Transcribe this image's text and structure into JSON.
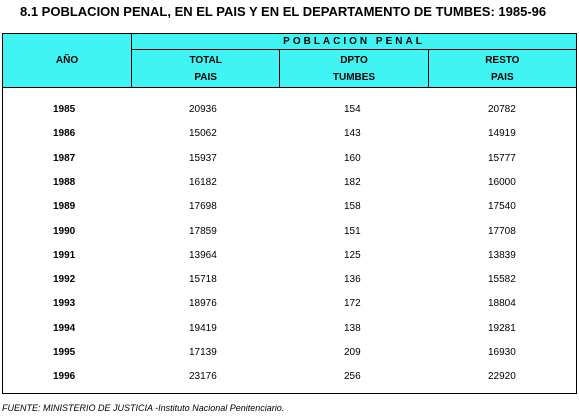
{
  "title": "8.1  POBLACION PENAL, EN EL PAIS Y EN EL DEPARTAMENTO DE TUMBES: 1985-96",
  "header": {
    "anio": "AÑO",
    "group": "POBLACION  PENAL",
    "col_total": [
      "TOTAL",
      "PAIS"
    ],
    "col_dpto": [
      "DPTO",
      "TUMBES"
    ],
    "col_resto": [
      "RESTO",
      "PAIS"
    ]
  },
  "rows": [
    {
      "year": "1985",
      "total": "20936",
      "dpto": "154",
      "resto": "20782"
    },
    {
      "year": "1986",
      "total": "15062",
      "dpto": "143",
      "resto": "14919"
    },
    {
      "year": "1987",
      "total": "15937",
      "dpto": "160",
      "resto": "15777"
    },
    {
      "year": "1988",
      "total": "16182",
      "dpto": "182",
      "resto": "16000"
    },
    {
      "year": "1989",
      "total": "17698",
      "dpto": "158",
      "resto": "17540"
    },
    {
      "year": "1990",
      "total": "17859",
      "dpto": "151",
      "resto": "17708"
    },
    {
      "year": "1991",
      "total": "13964",
      "dpto": "125",
      "resto": "13839"
    },
    {
      "year": "1992",
      "total": "15718",
      "dpto": "136",
      "resto": "15582"
    },
    {
      "year": "1993",
      "total": "18976",
      "dpto": "172",
      "resto": "18804"
    },
    {
      "year": "1994",
      "total": "19419",
      "dpto": "138",
      "resto": "19281"
    },
    {
      "year": "1995",
      "total": "17139",
      "dpto": "209",
      "resto": "16930"
    },
    {
      "year": "1996",
      "total": "23176",
      "dpto": "256",
      "resto": "22920"
    }
  ],
  "source": "FUENTE: MINISTERIO DE JUSTICIA -Instituto Nacional Penitenciario.",
  "colors": {
    "header_bg": "#40f4f4"
  }
}
